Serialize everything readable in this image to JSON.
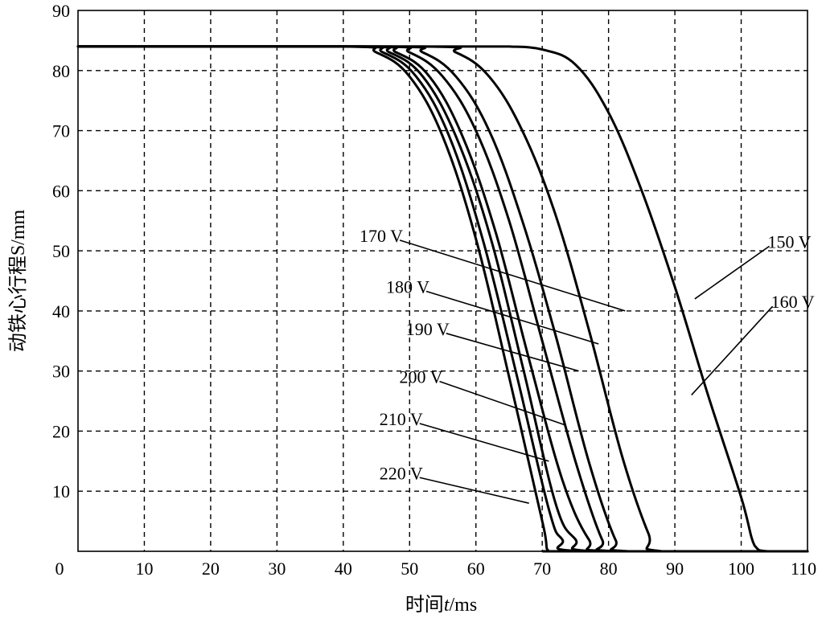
{
  "chart_data": {
    "type": "line",
    "title": "",
    "xlabel_prefix": "时间",
    "xlabel_var": "t",
    "xlabel_unit": "/ms",
    "ylabel": "动铁心行程S/mm",
    "xlim": [
      0,
      110
    ],
    "ylim": [
      0,
      90
    ],
    "x_ticks": [
      0,
      10,
      20,
      30,
      40,
      50,
      60,
      70,
      80,
      90,
      100,
      110
    ],
    "y_ticks": [
      0,
      10,
      20,
      30,
      40,
      50,
      60,
      70,
      80,
      90
    ],
    "grid": true,
    "series": [
      {
        "name": "220 V",
        "x": [
          0,
          40,
          45,
          50,
          55,
          60,
          65,
          70,
          71,
          74,
          110
        ],
        "y": [
          84,
          84,
          83,
          79,
          69,
          52,
          29,
          5,
          0,
          0,
          0
        ],
        "label_at": [
          68,
          8
        ]
      },
      {
        "name": "210 V",
        "x": [
          0,
          41,
          46,
          51,
          56,
          61,
          66,
          71,
          73,
          76,
          110
        ],
        "y": [
          84,
          84,
          83,
          79,
          69,
          52,
          30,
          7,
          2,
          0,
          0
        ],
        "label_at": [
          71,
          15
        ]
      },
      {
        "name": "200 V",
        "x": [
          0,
          42,
          47,
          52,
          57,
          62,
          67,
          72,
          75,
          78,
          110
        ],
        "y": [
          84,
          84,
          83,
          79,
          69,
          53,
          31,
          8,
          2,
          0,
          0
        ],
        "label_at": [
          73.5,
          21
        ]
      },
      {
        "name": "190 V",
        "x": [
          0,
          43,
          48,
          53,
          58,
          63,
          68,
          73,
          77,
          80,
          110
        ],
        "y": [
          84,
          84,
          83,
          79,
          69,
          53,
          32,
          12,
          2,
          0,
          0
        ],
        "label_at": [
          75.5,
          30
        ]
      },
      {
        "name": "180 V",
        "x": [
          0,
          45,
          50,
          55,
          60,
          65,
          70,
          75,
          79,
          81,
          110
        ],
        "y": [
          84,
          84,
          83,
          79,
          70,
          55,
          35,
          15,
          2,
          0,
          0
        ],
        "label_at": [
          78.5,
          34.5
        ]
      },
      {
        "name": "170 V",
        "x": [
          0,
          47,
          52,
          57,
          62,
          67,
          72,
          77,
          81,
          83,
          110
        ],
        "y": [
          84,
          84,
          83,
          79,
          70,
          55,
          36,
          15,
          2,
          0,
          0
        ],
        "label_at": [
          82.5,
          40
        ]
      },
      {
        "name": "160 V",
        "x": [
          0,
          52,
          57,
          62,
          67,
          72,
          77,
          82,
          86,
          88,
          110
        ],
        "y": [
          84,
          84,
          83,
          79,
          70,
          56,
          37,
          16,
          3,
          0,
          0
        ],
        "label_at": [
          92.5,
          26
        ]
      },
      {
        "name": "150 V",
        "x": [
          0,
          55,
          60,
          65,
          70,
          75,
          80,
          85,
          90,
          95,
          100,
          102,
          104,
          110
        ],
        "y": [
          84,
          84,
          84,
          84,
          83.5,
          81,
          73,
          60,
          44,
          26,
          9,
          1,
          0,
          0
        ],
        "label_at": [
          93,
          42
        ]
      }
    ],
    "curve_label_text_at": {
      "220 V": [
        52,
        12
      ],
      "210 V": [
        52,
        21
      ],
      "200 V": [
        55,
        28
      ],
      "190 V": [
        56,
        36
      ],
      "180 V": [
        53,
        43
      ],
      "170 V": [
        49,
        51.5
      ],
      "160 V": [
        104.5,
        40.5
      ],
      "150 V": [
        104,
        50.5
      ]
    }
  }
}
